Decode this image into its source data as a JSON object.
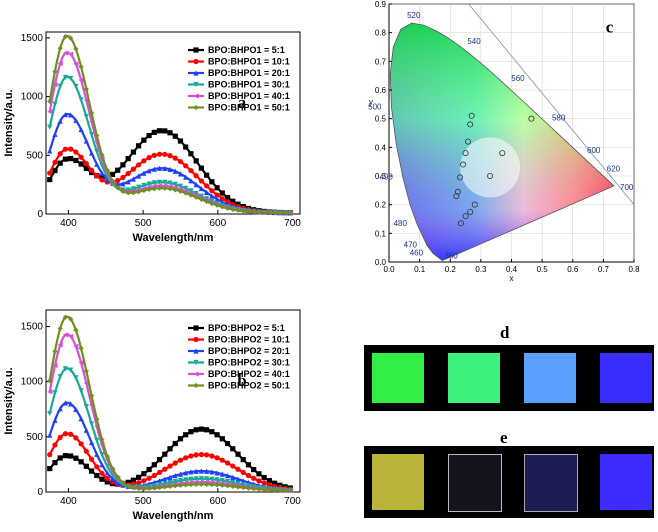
{
  "chart_data": [
    {
      "id": "a",
      "type": "line",
      "panel_label": "a",
      "xlabel": "Wavelength/nm",
      "ylabel": "Intensity/a.u.",
      "xlim": [
        370,
        710
      ],
      "ylim": [
        0,
        1550
      ],
      "xticks": [
        400,
        500,
        600,
        700
      ],
      "yticks": [
        0,
        500,
        1000,
        1500
      ],
      "legend_position": "top-right",
      "series": [
        {
          "name": "BPO:BHPO1 = 5:1",
          "color": "#000000",
          "marker": "square",
          "peak1": 440,
          "peak2": 700
        },
        {
          "name": "BPO:BHPO1 = 10:1",
          "color": "#ff0000",
          "marker": "circle",
          "peak1": 530,
          "peak2": 500
        },
        {
          "name": "BPO:BHPO1 = 20:1",
          "color": "#1f3fff",
          "marker": "triangle",
          "peak1": 830,
          "peak2": 380
        },
        {
          "name": "BPO:BHPO1 = 30:1",
          "color": "#19a99a",
          "marker": "triangle-down",
          "peak1": 1150,
          "peak2": 260
        },
        {
          "name": "BPO:BHPO1 = 40:1",
          "color": "#d94fd9",
          "marker": "triangle-left",
          "peak1": 1360,
          "peak2": 230
        },
        {
          "name": "BPO:BHPO1 = 50:1",
          "color": "#6f8f1f",
          "marker": "diamond",
          "peak1": 1500,
          "peak2": 210
        }
      ],
      "peak1_position_nm": 398,
      "peak2_position_nm": 525
    },
    {
      "id": "b",
      "type": "line",
      "panel_label": "b",
      "xlabel": "Wavelength/nm",
      "ylabel": "Intensity/a.u.",
      "xlim": [
        370,
        710
      ],
      "ylim": [
        0,
        1650
      ],
      "xticks": [
        400,
        500,
        600,
        700
      ],
      "yticks": [
        0,
        500,
        1000,
        1500
      ],
      "legend_position": "top-right",
      "series": [
        {
          "name": "BPO:BHPO2 = 5:1",
          "color": "#000000",
          "marker": "square",
          "peak1": 320,
          "peak2": 560
        },
        {
          "name": "BPO:BHPO2 = 10:1",
          "color": "#ff0000",
          "marker": "circle",
          "peak1": 520,
          "peak2": 330
        },
        {
          "name": "BPO:BHPO2 = 20:1",
          "color": "#1f3fff",
          "marker": "triangle",
          "peak1": 800,
          "peak2": 180
        },
        {
          "name": "BPO:BHPO2 = 30:1",
          "color": "#19a99a",
          "marker": "triangle-down",
          "peak1": 1110,
          "peak2": 110
        },
        {
          "name": "BPO:BHPO2 = 40:1",
          "color": "#d94fd9",
          "marker": "triangle-left",
          "peak1": 1420,
          "peak2": 80
        },
        {
          "name": "BPO:BHPO2 = 50:1",
          "color": "#6f8f1f",
          "marker": "diamond",
          "peak1": 1580,
          "peak2": 60
        }
      ],
      "peak1_position_nm": 398,
      "peak2_position_nm": 578
    },
    {
      "id": "c",
      "type": "scatter",
      "panel_label": "c",
      "xlabel": "x",
      "ylabel": "y",
      "xlim": [
        0.0,
        0.8
      ],
      "ylim": [
        0.0,
        0.9
      ],
      "xticks": [
        "0.0",
        "0.1",
        "0.2",
        "0.3",
        "0.4",
        "0.5",
        "0.6",
        "0.7",
        "0.8"
      ],
      "yticks": [
        "0.0",
        "0.1",
        "0.2",
        "0.3",
        "0.4",
        "0.5",
        "0.6",
        "0.7",
        "0.8",
        "0.9"
      ],
      "wavelength_labels": [
        {
          "label": "380",
          "x": 0.1741,
          "y": 0.005
        },
        {
          "label": "460",
          "x": 0.144,
          "y": 0.0297
        },
        {
          "label": "470",
          "x": 0.1241,
          "y": 0.0578
        },
        {
          "label": "480",
          "x": 0.0913,
          "y": 0.1327
        },
        {
          "label": "490",
          "x": 0.0454,
          "y": 0.295
        },
        {
          "label": "500",
          "x": 0.0082,
          "y": 0.5384
        },
        {
          "label": "520",
          "x": 0.0743,
          "y": 0.8338
        },
        {
          "label": "540",
          "x": 0.2296,
          "y": 0.7543
        },
        {
          "label": "560",
          "x": 0.3731,
          "y": 0.6245
        },
        {
          "label": "580",
          "x": 0.5125,
          "y": 0.4866
        },
        {
          "label": "600",
          "x": 0.627,
          "y": 0.3725
        },
        {
          "label": "620",
          "x": 0.6915,
          "y": 0.3083
        },
        {
          "label": "700",
          "x": 0.7347,
          "y": 0.2653
        }
      ],
      "points": [
        {
          "x": 0.27,
          "y": 0.51
        },
        {
          "x": 0.265,
          "y": 0.48
        },
        {
          "x": 0.258,
          "y": 0.42
        },
        {
          "x": 0.25,
          "y": 0.38
        },
        {
          "x": 0.242,
          "y": 0.34
        },
        {
          "x": 0.232,
          "y": 0.295
        },
        {
          "x": 0.225,
          "y": 0.245
        },
        {
          "x": 0.22,
          "y": 0.23
        },
        {
          "x": 0.465,
          "y": 0.5
        },
        {
          "x": 0.37,
          "y": 0.38
        },
        {
          "x": 0.33,
          "y": 0.3
        },
        {
          "x": 0.28,
          "y": 0.2
        },
        {
          "x": 0.265,
          "y": 0.175
        },
        {
          "x": 0.25,
          "y": 0.16
        },
        {
          "x": 0.235,
          "y": 0.135
        }
      ]
    }
  ],
  "photo_panels": {
    "d": {
      "label": "d",
      "swatches": [
        "#33ee44",
        "#3ef07e",
        "#5aa0ff",
        "#3a2dff"
      ]
    },
    "e": {
      "label": "e",
      "swatches": [
        "#b9b43a",
        "#15131e",
        "#1e1c55",
        "#3c2cff"
      ]
    }
  }
}
